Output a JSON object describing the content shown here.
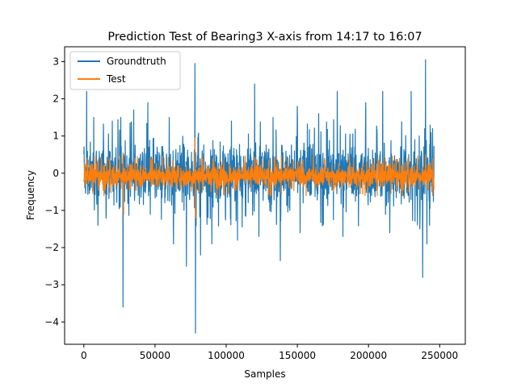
{
  "chart_data": {
    "type": "line",
    "title": "Prediction Test of Bearing3 X-axis from 14:17 to 16:07",
    "xlabel": "Samples",
    "ylabel": "Frequency",
    "xlim": [
      -13500,
      268000
    ],
    "ylim": [
      -4.6,
      3.4
    ],
    "xticks": [
      0,
      50000,
      100000,
      150000,
      200000,
      250000
    ],
    "xtick_labels": [
      "0",
      "50000",
      "100000",
      "150000",
      "200000",
      "250000"
    ],
    "yticks": [
      -4,
      -3,
      -2,
      -1,
      0,
      1,
      2,
      3
    ],
    "ytick_labels": [
      "−4",
      "−3",
      "−2",
      "−1",
      "0",
      "1",
      "2",
      "3"
    ],
    "grid": false,
    "legend_position": "top-left",
    "series": [
      {
        "name": "Groundtruth",
        "color": "#1f77b4",
        "x_range": [
          0,
          246000
        ],
        "typical_band": [
          -1.0,
          1.0
        ],
        "peaks": [
          [
            2000,
            2.2
          ],
          [
            7000,
            1.5
          ],
          [
            10000,
            -1.4
          ],
          [
            20000,
            1.4
          ],
          [
            26000,
            1.5
          ],
          [
            27500,
            -3.6
          ],
          [
            35000,
            1.7
          ],
          [
            45000,
            1.9
          ],
          [
            60000,
            1.5
          ],
          [
            63000,
            -1.9
          ],
          [
            72000,
            -2.5
          ],
          [
            78000,
            2.95
          ],
          [
            78500,
            -4.3
          ],
          [
            82000,
            -2.2
          ],
          [
            90000,
            -1.9
          ],
          [
            108000,
            -1.8
          ],
          [
            120000,
            2.4
          ],
          [
            123000,
            -1.7
          ],
          [
            133000,
            1.5
          ],
          [
            138000,
            -2.35
          ],
          [
            150000,
            1.8
          ],
          [
            152000,
            -1.6
          ],
          [
            165000,
            1.6
          ],
          [
            178000,
            2.2
          ],
          [
            182000,
            -1.7
          ],
          [
            198000,
            1.9
          ],
          [
            210000,
            2.2
          ],
          [
            215000,
            -1.6
          ],
          [
            230000,
            2.2
          ],
          [
            236000,
            -1.5
          ],
          [
            238000,
            -2.8
          ],
          [
            240000,
            3.05
          ],
          [
            241000,
            -1.9
          ],
          [
            245000,
            1.2
          ]
        ]
      },
      {
        "name": "Test",
        "color": "#ff7f0e",
        "x_range": [
          0,
          246000
        ],
        "typical_band": [
          -0.45,
          0.3
        ],
        "peaks": [
          [
            27500,
            0.55
          ],
          [
            28000,
            -1.1
          ],
          [
            78000,
            0.95
          ],
          [
            78500,
            -1.2
          ],
          [
            120000,
            0.4
          ],
          [
            240000,
            0.5
          ],
          [
            245000,
            -0.6
          ]
        ]
      }
    ]
  }
}
